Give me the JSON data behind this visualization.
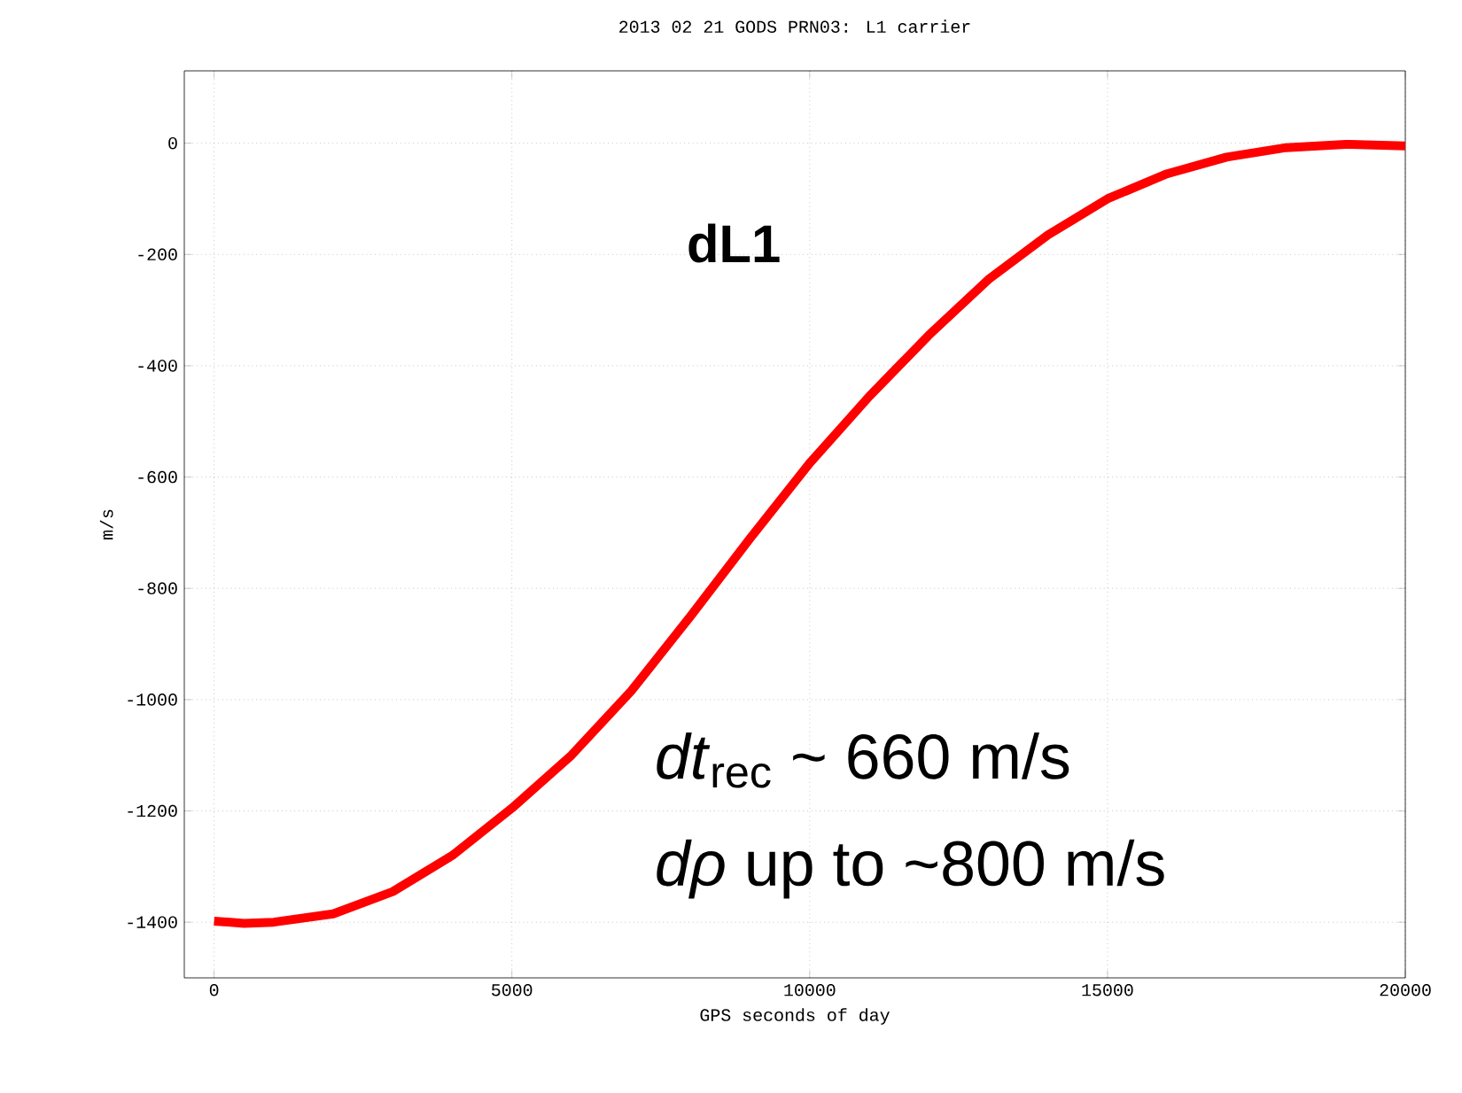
{
  "chart_data": {
    "type": "line",
    "title": "2013 02 21 GODS PRN03: L1 carrier",
    "xlabel": "GPS seconds of day",
    "ylabel": "m/s",
    "x": [
      0,
      500,
      1000,
      2000,
      3000,
      4000,
      5000,
      6000,
      7000,
      8000,
      9000,
      10000,
      11000,
      12000,
      13000,
      14000,
      15000,
      16000,
      17000,
      18000,
      19000,
      20000
    ],
    "values": [
      -1398,
      -1402,
      -1400,
      -1385,
      -1345,
      -1280,
      -1195,
      -1100,
      -985,
      -850,
      -710,
      -575,
      -455,
      -345,
      -245,
      -165,
      -100,
      -55,
      -25,
      -8,
      -2,
      -5
    ],
    "color": "#ff0000",
    "xlim": [
      -500,
      20000
    ],
    "ylim": [
      -1500,
      130
    ],
    "xticks": [
      0,
      5000,
      10000,
      15000,
      20000
    ],
    "yticks": [
      -1400,
      -1200,
      -1000,
      -800,
      -600,
      -400,
      -200,
      0
    ],
    "grid": true,
    "annotations": [
      "**dL1**",
      "*dt*$_{rec}$ ~ 660 m/s",
      "*dρ* up to ~800 m/s"
    ]
  }
}
